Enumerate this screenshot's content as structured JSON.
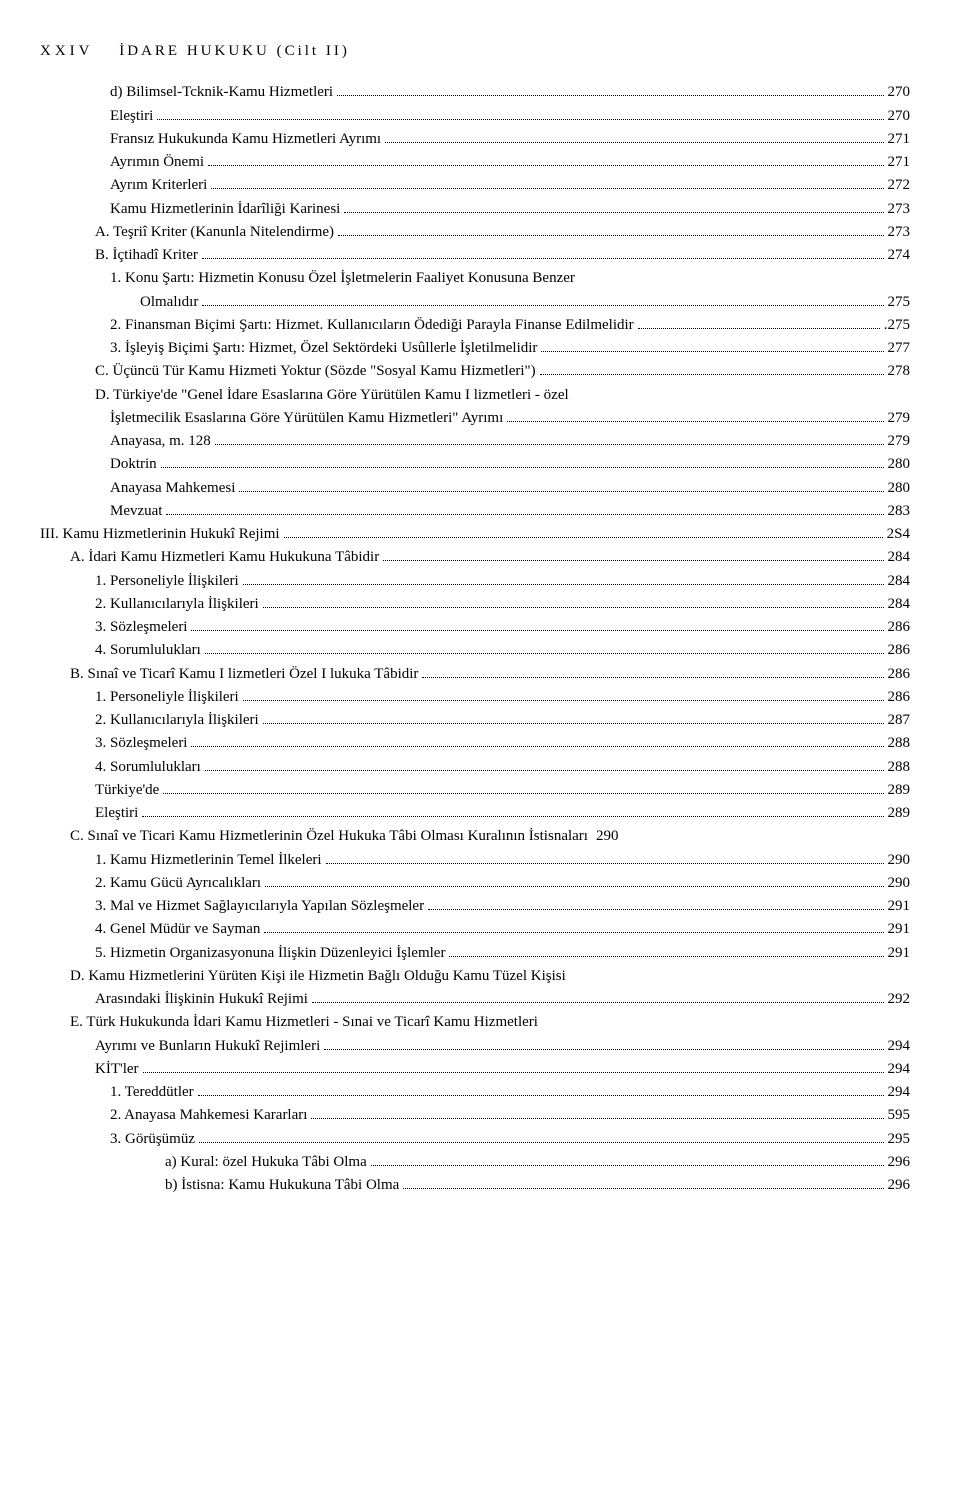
{
  "header": {
    "page_roman": "XXIV",
    "title": "İDARE HUKUKU (Cilt II)"
  },
  "lines": [
    {
      "indent": "ind1",
      "text": "d) Bilimsel-Tcknik-Kamu Hizmetleri",
      "page": "270"
    },
    {
      "indent": "ind1",
      "text": "Eleştiri",
      "page": "270"
    },
    {
      "indent": "ind1",
      "text": "Fransız Hukukunda Kamu Hizmetleri Ayrımı",
      "page": "271"
    },
    {
      "indent": "ind1",
      "text": "Ayrımın Önemi",
      "page": "271"
    },
    {
      "indent": "ind1",
      "text": "Ayrım Kriterleri",
      "page": "272"
    },
    {
      "indent": "ind1",
      "text": "Kamu Hizmetlerinin İdarîliği Karinesi",
      "page": "273"
    },
    {
      "indent": "indN",
      "text": "A. Teşriî Kriter (Kanunla Nitelendirme)",
      "page": "273"
    },
    {
      "indent": "indN",
      "text": "B. İçtihadî Kriter",
      "page": "274"
    },
    {
      "indent": "ind1",
      "text": "1. Konu Şartı: Hizmetin Konusu Özel İşletmelerin Faaliyet Konusuna Benzer",
      "cont": true
    },
    {
      "indent": "ind2",
      "text": "Olmalıdır",
      "page": "275"
    },
    {
      "indent": "ind1",
      "text": "2. Finansman Biçimi Şartı: Hizmet. Kullanıcıların Ödediği Parayla Finanse Edilmelidir",
      "page": ".275"
    },
    {
      "indent": "ind1",
      "text": "3. İşleyiş Biçimi Şartı: Hizmet, Özel Sektördeki Usûllerle İşletilmelidir",
      "page": "277"
    },
    {
      "indent": "indN",
      "text": "C. Üçüncü Tür Kamu Hizmeti Yoktur (Sözde \"Sosyal Kamu Hizmetleri\")",
      "page": "278"
    },
    {
      "indent": "indN",
      "text": "D. Türkiye'de \"Genel İdare Esaslarına Göre Yürütülen Kamu I lizmetleri - özel",
      "cont": true
    },
    {
      "indent": "ind1",
      "text": "İşletmecilik Esaslarına Göre Yürütülen Kamu Hizmetleri\" Ayrımı",
      "page": "279"
    },
    {
      "indent": "ind1",
      "text": "Anayasa, m. 128",
      "page": "279"
    },
    {
      "indent": "ind1",
      "text": "Doktrin",
      "page": "280"
    },
    {
      "indent": "ind1",
      "text": "Anayasa Mahkemesi",
      "page": "280"
    },
    {
      "indent": "ind1",
      "text": "Mevzuat",
      "page": "283"
    },
    {
      "indent": "ind0",
      "text": "III. Kamu Hizmetlerinin Hukukî Rejimi",
      "page": "2S4"
    },
    {
      "indent": "indA",
      "text": "A. İdari Kamu Hizmetleri Kamu Hukukuna Tâbidir",
      "page": "284"
    },
    {
      "indent": "indN",
      "text": "1. Personeliyle İlişkileri",
      "page": "284"
    },
    {
      "indent": "indN",
      "text": "2. Kullanıcılarıyla İlişkileri",
      "page": "284"
    },
    {
      "indent": "indN",
      "text": "3. Sözleşmeleri",
      "page": "286"
    },
    {
      "indent": "indN",
      "text": "4. Sorumlulukları",
      "page": "286"
    },
    {
      "indent": "indA",
      "text": "B. Sınaî ve Ticarî Kamu I lizmetleri Özel I lukuka Tâbidir",
      "page": "286"
    },
    {
      "indent": "indN",
      "text": "1. Personeliyle İlişkileri",
      "page": "286"
    },
    {
      "indent": "indN",
      "text": "2. Kullanıcılarıyla İlişkileri",
      "page": "287"
    },
    {
      "indent": "indN",
      "text": "3. Sözleşmeleri",
      "page": "288"
    },
    {
      "indent": "indN",
      "text": "4. Sorumlulukları",
      "page": "288"
    },
    {
      "indent": "indN",
      "text": "Türkiye'de",
      "page": "289"
    },
    {
      "indent": "indN",
      "text": "Eleştiri",
      "page": "289"
    },
    {
      "indent": "indA",
      "text": "C. Sınaî ve Ticari Kamu Hizmetlerinin Özel Hukuka Tâbi Olması Kuralının İstisnaları",
      "page": "290",
      "nodots": true
    },
    {
      "indent": "indN",
      "text": "1. Kamu Hizmetlerinin Temel İlkeleri",
      "page": "290"
    },
    {
      "indent": "indN",
      "text": "2. Kamu Gücü Ayrıcalıkları",
      "page": "290"
    },
    {
      "indent": "indN",
      "text": "3. Mal ve Hizmet Sağlayıcılarıyla Yapılan Sözleşmeler",
      "page": "291"
    },
    {
      "indent": "indN",
      "text": "4. Genel Müdür ve Sayman",
      "page": "291"
    },
    {
      "indent": "indN",
      "text": "5. Hizmetin Organizasyonuna İlişkin Düzenleyici İşlemler",
      "page": "291"
    },
    {
      "indent": "indA",
      "text": "D. Kamu Hizmetlerini Yürüten Kişi ile Hizmetin Bağlı Olduğu Kamu Tüzel Kişisi",
      "cont": true
    },
    {
      "indent": "indN",
      "text": "Arasındaki İlişkinin Hukukî Rejimi",
      "page": "292"
    },
    {
      "indent": "indA",
      "text": "E. Türk Hukukunda İdari Kamu Hizmetleri - Sınai ve Ticarî Kamu Hizmetleri",
      "cont": true
    },
    {
      "indent": "indN",
      "text": "Ayrımı ve Bunların Hukukî Rejimleri",
      "page": "294"
    },
    {
      "indent": "indN",
      "text": "KİT'ler",
      "page": "294"
    },
    {
      "indent": "ind1b",
      "text": "1. Tereddütler",
      "page": "294"
    },
    {
      "indent": "ind1b",
      "text": "2. Anayasa Mahkemesi Kararları",
      "page": "595"
    },
    {
      "indent": "ind1b",
      "text": "3. Görüşümüz",
      "page": "295"
    },
    {
      "indent": "indSub",
      "text": "a) Kural: özel Hukuka Tâbi Olma",
      "page": "296"
    },
    {
      "indent": "indSub",
      "text": "b) İstisna: Kamu Hukukuna Tâbi Olma",
      "page": "296"
    }
  ]
}
